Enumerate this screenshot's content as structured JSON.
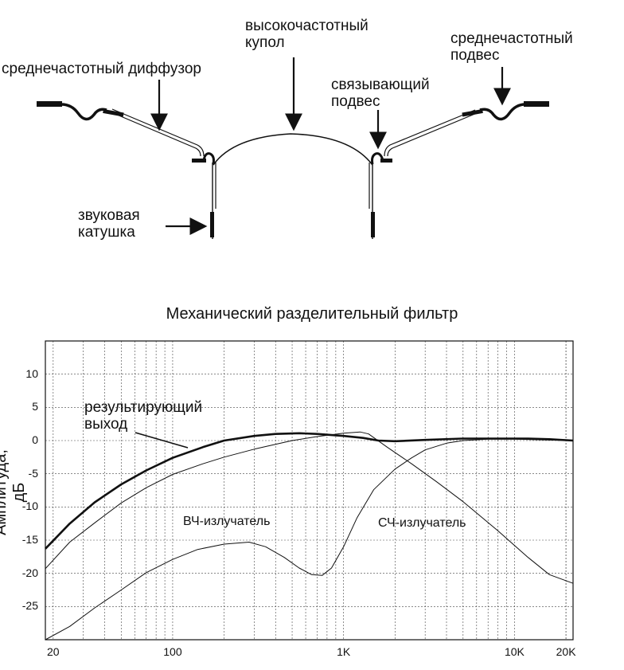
{
  "diagram": {
    "labels": {
      "mid_diffuser": "среднечастотный диффузор",
      "hf_dome": [
        "высокочастотный",
        "купол"
      ],
      "mid_suspension": [
        "среднечастотный",
        "подвес"
      ],
      "coupling_suspension": [
        "связывающий",
        "подвес"
      ],
      "voice_coil": [
        "звуковая",
        "катушка"
      ]
    }
  },
  "chart_data": {
    "type": "line",
    "title": "Механический разделительный фильтр",
    "xlabel": "",
    "ylabel": "Амплитуда, дБ",
    "x_scale": "log",
    "xlim": [
      18,
      22000
    ],
    "ylim": [
      -30,
      15
    ],
    "x_ticks": [
      {
        "value": 20,
        "label": "20"
      },
      {
        "value": 100,
        "label": "100"
      },
      {
        "value": 1000,
        "label": "1K"
      },
      {
        "value": 10000,
        "label": "10K"
      },
      {
        "value": 20000,
        "label": "20K"
      }
    ],
    "y_ticks": [
      10,
      5,
      0,
      -5,
      -10,
      -15,
      -20,
      -25
    ],
    "grid": true,
    "series": [
      {
        "name": "результирующий выход",
        "label_lines": [
          "результирующий",
          "выход"
        ],
        "stroke_width": 2.6,
        "points": [
          [
            18,
            -16.3
          ],
          [
            25,
            -12.5
          ],
          [
            35,
            -9.3
          ],
          [
            50,
            -6.6
          ],
          [
            70,
            -4.5
          ],
          [
            100,
            -2.6
          ],
          [
            150,
            -1
          ],
          [
            200,
            0
          ],
          [
            300,
            0.7
          ],
          [
            400,
            1
          ],
          [
            550,
            1.1
          ],
          [
            700,
            1
          ],
          [
            1000,
            0.7
          ],
          [
            1300,
            0.4
          ],
          [
            1600,
            0
          ],
          [
            2000,
            -0.1
          ],
          [
            3000,
            0.1
          ],
          [
            5000,
            0.3
          ],
          [
            8000,
            0.3
          ],
          [
            12000,
            0.3
          ],
          [
            16000,
            0.2
          ],
          [
            22000,
            0
          ]
        ]
      },
      {
        "name": "СЧ-излучатель",
        "stroke_width": 1,
        "points": [
          [
            18,
            -19.3
          ],
          [
            25,
            -15.3
          ],
          [
            35,
            -12.4
          ],
          [
            50,
            -9.4
          ],
          [
            70,
            -7.1
          ],
          [
            100,
            -5.1
          ],
          [
            150,
            -3.5
          ],
          [
            200,
            -2.5
          ],
          [
            300,
            -1.3
          ],
          [
            500,
            0
          ],
          [
            700,
            0.6
          ],
          [
            1000,
            1.1
          ],
          [
            1250,
            1.3
          ],
          [
            1400,
            1
          ],
          [
            1800,
            -1
          ],
          [
            2500,
            -3.5
          ],
          [
            3500,
            -6.2
          ],
          [
            5000,
            -9.2
          ],
          [
            8000,
            -13.6
          ],
          [
            12000,
            -17.6
          ],
          [
            16000,
            -20.2
          ],
          [
            22000,
            -21.5
          ]
        ]
      },
      {
        "name": "ВЧ-излучатель",
        "stroke_width": 1,
        "points": [
          [
            18,
            -30
          ],
          [
            25,
            -28
          ],
          [
            35,
            -25.2
          ],
          [
            50,
            -22.5
          ],
          [
            70,
            -19.9
          ],
          [
            100,
            -17.9
          ],
          [
            140,
            -16.4
          ],
          [
            200,
            -15.6
          ],
          [
            280,
            -15.3
          ],
          [
            350,
            -16
          ],
          [
            450,
            -17.6
          ],
          [
            550,
            -19.2
          ],
          [
            650,
            -20.2
          ],
          [
            750,
            -20.3
          ],
          [
            850,
            -19.2
          ],
          [
            1000,
            -16
          ],
          [
            1200,
            -11.6
          ],
          [
            1500,
            -7.4
          ],
          [
            2000,
            -4.3
          ],
          [
            2500,
            -2.6
          ],
          [
            3000,
            -1.4
          ],
          [
            4000,
            -0.4
          ],
          [
            5000,
            0
          ],
          [
            7000,
            0.2
          ],
          [
            10000,
            0.2
          ],
          [
            15000,
            0.1
          ],
          [
            22000,
            0
          ]
        ]
      }
    ]
  }
}
